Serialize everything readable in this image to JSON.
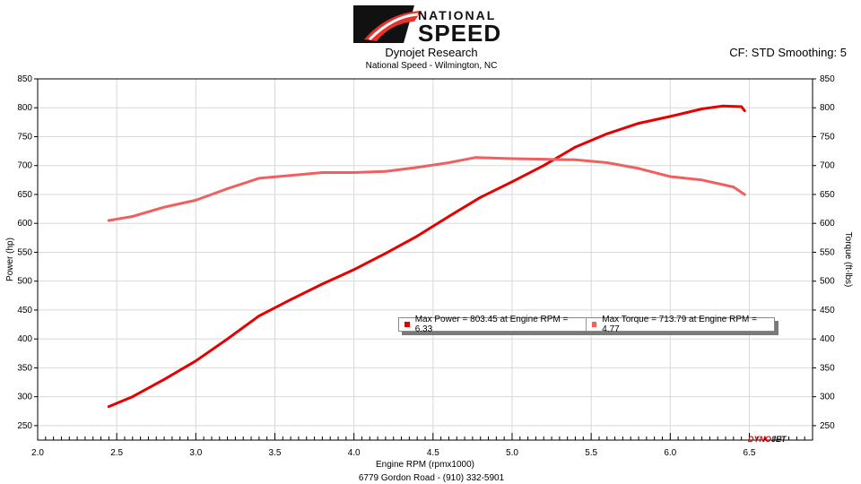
{
  "header": {
    "brand_top": "NATIONAL",
    "brand_bottom": "SPEED",
    "title": "Dynojet Research",
    "subtitle": "National Speed - Wilmington, NC",
    "cf_text": "CF: STD Smoothing: 5"
  },
  "footer": {
    "address": "6779 Gordon Road - (910) 332-5901"
  },
  "badge": {
    "dyno": "DYNO",
    "jet": "JET"
  },
  "legend": [
    {
      "text": "Max Power = 803.45 at Engine RPM = 6.33",
      "color": "#e60000"
    },
    {
      "text": "Max Torque = 713.79 at Engine RPM = 4.77",
      "color": "#f06060"
    }
  ],
  "chart_data": {
    "type": "line",
    "xlabel": "Engine RPM (rpmx1000)",
    "ylabel": "Power (hp)",
    "y2label": "Torque (ft-lbs)",
    "xlim": [
      2.0,
      6.9
    ],
    "ylim": [
      225,
      850
    ],
    "y2lim": [
      225,
      850
    ],
    "xticks": [
      2.0,
      2.5,
      3.0,
      3.5,
      4.0,
      4.5,
      5.0,
      5.5,
      6.0,
      6.5
    ],
    "yticks": [
      250,
      300,
      350,
      400,
      450,
      500,
      550,
      600,
      650,
      700,
      750,
      800,
      850
    ],
    "series": [
      {
        "name": "Power",
        "color": "#e60000",
        "x": [
          2.45,
          2.6,
          2.8,
          3.0,
          3.2,
          3.4,
          3.6,
          3.8,
          4.0,
          4.2,
          4.4,
          4.6,
          4.8,
          5.0,
          5.2,
          5.4,
          5.6,
          5.8,
          6.0,
          6.2,
          6.33,
          6.45,
          6.47
        ],
        "values": [
          283,
          300,
          330,
          362,
          400,
          440,
          468,
          495,
          520,
          548,
          578,
          612,
          645,
          672,
          700,
          732,
          755,
          773,
          785,
          798,
          803,
          802,
          795
        ]
      },
      {
        "name": "Torque",
        "color": "#f06060",
        "x": [
          2.45,
          2.6,
          2.8,
          3.0,
          3.2,
          3.4,
          3.6,
          3.8,
          4.0,
          4.2,
          4.4,
          4.6,
          4.77,
          5.0,
          5.2,
          5.4,
          5.6,
          5.8,
          6.0,
          6.2,
          6.4,
          6.47
        ],
        "values": [
          605,
          612,
          628,
          640,
          660,
          678,
          683,
          688,
          688,
          690,
          697,
          705,
          714,
          712,
          711,
          710,
          705,
          695,
          681,
          675,
          663,
          650
        ]
      }
    ]
  }
}
